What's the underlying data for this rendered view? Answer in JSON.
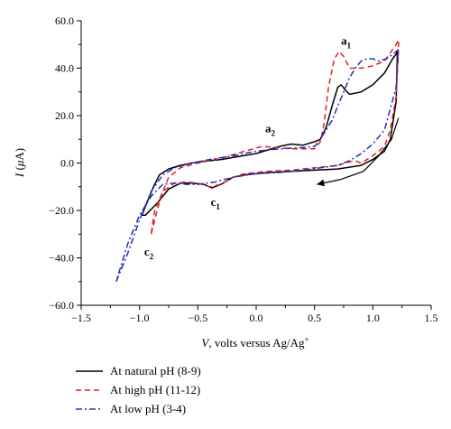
{
  "chart_data": {
    "type": "line",
    "xlabel_parts": [
      "V",
      ", volts versus Ag/Ag",
      "+"
    ],
    "ylabel_parts": [
      "I",
      " (",
      "μ",
      "A)"
    ],
    "xlim": [
      -1.5,
      1.5
    ],
    "ylim": [
      -60,
      60
    ],
    "x_ticks": [
      "−1.5",
      "−1.0",
      "−0.5",
      "0.0",
      "0.5",
      "1.0",
      "1.5"
    ],
    "y_ticks": [
      "60.0",
      "40.0",
      "20.0",
      "0.0",
      "−20.0",
      "−40.0",
      "−60.0"
    ],
    "annotations": [
      {
        "base": "a",
        "sub": "1",
        "x": 0.77,
        "y": 50
      },
      {
        "base": "a",
        "sub": "2",
        "x": 0.12,
        "y": 13
      },
      {
        "base": "c",
        "sub": "1",
        "x": -0.35,
        "y": -18
      },
      {
        "base": "c",
        "sub": "2",
        "x": -0.92,
        "y": -39
      }
    ],
    "scan_arrow": {
      "x": [
        1.22,
        1.16,
        1.05,
        0.92,
        0.72,
        0.52
      ],
      "y": [
        19,
        10,
        3,
        -3.5,
        -7,
        -9
      ]
    },
    "series": [
      {
        "name": "At natural pH (8-9)",
        "color": "#000000",
        "dash": "solid",
        "x": [
          -0.98,
          -0.93,
          -0.88,
          -0.83,
          -0.75,
          -0.65,
          -0.5,
          -0.3,
          0.0,
          0.2,
          0.3,
          0.4,
          0.5,
          0.55,
          0.6,
          0.65,
          0.7,
          0.73,
          0.76,
          0.8,
          0.9,
          1.0,
          1.1,
          1.17,
          1.2,
          1.21,
          1.2,
          1.15,
          1.1,
          1.0,
          0.9,
          0.7,
          0.5,
          0.3,
          0.1,
          -0.1,
          -0.2,
          -0.3,
          -0.38,
          -0.45,
          -0.55,
          -0.65,
          -0.75,
          -0.85,
          -0.95,
          -0.98
        ],
        "y": [
          -22,
          -16,
          -10,
          -5,
          -2.5,
          -1,
          0.5,
          1.5,
          4,
          7,
          8,
          7.5,
          9,
          10,
          15,
          24,
          32,
          33,
          31,
          29,
          30,
          33,
          38,
          44,
          46,
          47,
          26,
          10,
          5,
          1.5,
          -1,
          -2.5,
          -3,
          -3.5,
          -4,
          -5,
          -6,
          -9,
          -10.5,
          -9,
          -8.5,
          -8.5,
          -11,
          -17,
          -22,
          -22
        ]
      },
      {
        "name": "At high pH (11-12)",
        "color": "#e02020",
        "dash": "dash",
        "x": [
          -0.9,
          -0.85,
          -0.8,
          -0.75,
          -0.65,
          -0.5,
          -0.3,
          -0.1,
          0.05,
          0.2,
          0.3,
          0.4,
          0.5,
          0.55,
          0.58,
          0.62,
          0.67,
          0.71,
          0.75,
          0.8,
          0.9,
          1.0,
          1.1,
          1.2,
          1.22,
          1.22,
          1.2,
          1.15,
          1.1,
          1.0,
          0.9,
          0.85,
          0.8,
          0.7,
          0.5,
          0.3,
          0.1,
          -0.1,
          -0.2,
          -0.3,
          -0.4,
          -0.5,
          -0.6,
          -0.7,
          -0.8,
          -0.87,
          -0.9
        ],
        "y": [
          -30,
          -20,
          -12,
          -6,
          -2,
          0,
          2,
          5,
          7,
          6.5,
          6,
          6,
          6,
          9,
          16,
          32,
          44,
          47,
          45,
          40,
          40,
          41,
          43,
          50,
          52,
          48,
          28,
          14,
          7,
          3,
          0,
          1,
          0.5,
          -1,
          -2,
          -3,
          -3.5,
          -4.5,
          -6,
          -9,
          -10,
          -8.5,
          -8,
          -8.5,
          -12,
          -20,
          -30
        ]
      },
      {
        "name": "At low pH (3-4)",
        "color": "#2030c0",
        "dash": "dashdot",
        "x": [
          -1.2,
          -1.1,
          -1.0,
          -0.9,
          -0.8,
          -0.7,
          -0.55,
          -0.4,
          -0.2,
          0.0,
          0.2,
          0.4,
          0.5,
          0.55,
          0.65,
          0.7,
          0.75,
          0.8,
          0.85,
          0.9,
          0.95,
          1.0,
          1.05,
          1.12,
          1.2,
          1.22,
          1.2,
          1.1,
          1.0,
          0.9,
          0.8,
          0.7,
          0.55,
          0.4,
          0.2,
          0.0,
          -0.2,
          -0.35,
          -0.5,
          -0.6,
          -0.7,
          -0.8,
          -0.9,
          -1.0,
          -1.1,
          -1.2
        ],
        "y": [
          -50,
          -38,
          -24,
          -12,
          -5,
          -2,
          0,
          1.5,
          3,
          5,
          6,
          6.5,
          7,
          10,
          18,
          24,
          30,
          36,
          40,
          43,
          44,
          44,
          43,
          44,
          47,
          48,
          32,
          14,
          8,
          4,
          1,
          -1,
          -2,
          -3,
          -4,
          -4.5,
          -6,
          -8,
          -9,
          -9,
          -8.5,
          -9,
          -14,
          -22,
          -34,
          -50
        ]
      }
    ]
  }
}
